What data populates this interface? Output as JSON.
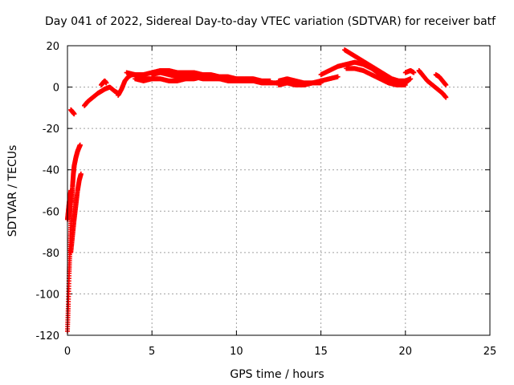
{
  "chart_data": {
    "type": "scatter",
    "title": "Day 041 of 2022, Sidereal Day-to-day VTEC variation (SDTVAR) for receiver batf",
    "xlabel": "GPS time / hours",
    "ylabel": "SDTVAR / TECUs",
    "xlim": [
      0,
      25
    ],
    "ylim": [
      -120,
      20
    ],
    "xticks": [
      0,
      5,
      10,
      15,
      20,
      25
    ],
    "yticks": [
      20,
      0,
      -20,
      -40,
      -60,
      -80,
      -100,
      -120
    ],
    "grid": true,
    "marker": "+",
    "series_color": "#ff0000",
    "tracks": [
      {
        "name": "steep_rise_a",
        "points": [
          [
            0.0,
            -118
          ],
          [
            0.05,
            -105
          ],
          [
            0.1,
            -90
          ],
          [
            0.15,
            -78
          ],
          [
            0.2,
            -66
          ],
          [
            0.25,
            -56
          ],
          [
            0.3,
            -48
          ],
          [
            0.35,
            -42
          ],
          [
            0.4,
            -38
          ],
          [
            0.5,
            -34
          ],
          [
            0.6,
            -31
          ],
          [
            0.7,
            -29
          ],
          [
            0.75,
            -28
          ]
        ]
      },
      {
        "name": "steep_rise_b",
        "points": [
          [
            0.0,
            -64
          ],
          [
            0.05,
            -60
          ],
          [
            0.1,
            -56
          ],
          [
            0.15,
            -53
          ],
          [
            0.2,
            -50
          ]
        ]
      },
      {
        "name": "steep_rise_c",
        "points": [
          [
            0.2,
            -80
          ],
          [
            0.3,
            -72
          ],
          [
            0.4,
            -64
          ],
          [
            0.5,
            -57
          ],
          [
            0.6,
            -50
          ],
          [
            0.7,
            -45
          ],
          [
            0.8,
            -42
          ]
        ]
      },
      {
        "name": "early_arc",
        "points": [
          [
            0.2,
            -11
          ],
          [
            0.3,
            -12
          ],
          [
            0.4,
            -13
          ]
        ]
      },
      {
        "name": "early_mid",
        "points": [
          [
            1.0,
            -9
          ],
          [
            1.2,
            -7
          ],
          [
            1.5,
            -5
          ],
          [
            1.8,
            -3
          ],
          [
            2.0,
            -2
          ],
          [
            2.2,
            -1
          ],
          [
            2.5,
            0
          ],
          [
            2.8,
            -2
          ],
          [
            3.0,
            -3
          ]
        ]
      },
      {
        "name": "bump_2",
        "points": [
          [
            2.0,
            1
          ],
          [
            2.1,
            2
          ],
          [
            2.2,
            3
          ],
          [
            2.3,
            2
          ]
        ]
      },
      {
        "name": "rise_3",
        "points": [
          [
            3.0,
            -4
          ],
          [
            3.2,
            -1
          ],
          [
            3.4,
            3
          ],
          [
            3.6,
            5
          ],
          [
            3.8,
            6
          ],
          [
            4.0,
            6
          ],
          [
            4.3,
            5
          ],
          [
            4.6,
            4
          ],
          [
            5.0,
            4
          ]
        ]
      },
      {
        "name": "main_upper",
        "points": [
          [
            3.5,
            7
          ],
          [
            4.0,
            6
          ],
          [
            4.5,
            6
          ],
          [
            5.0,
            7
          ],
          [
            5.5,
            8
          ],
          [
            6.0,
            8
          ],
          [
            6.5,
            7
          ],
          [
            7.0,
            7
          ],
          [
            7.5,
            7
          ],
          [
            8.0,
            6
          ],
          [
            8.5,
            6
          ],
          [
            9.0,
            5
          ],
          [
            9.5,
            5
          ],
          [
            10.0,
            4
          ],
          [
            10.5,
            4
          ],
          [
            11.0,
            4
          ],
          [
            11.5,
            3
          ],
          [
            12.0,
            3
          ]
        ]
      },
      {
        "name": "main_lower",
        "points": [
          [
            4.0,
            4
          ],
          [
            4.5,
            3
          ],
          [
            5.0,
            4
          ],
          [
            5.5,
            4
          ],
          [
            6.0,
            3
          ],
          [
            6.5,
            3
          ],
          [
            7.0,
            4
          ],
          [
            7.5,
            4
          ],
          [
            8.0,
            5
          ],
          [
            8.5,
            5
          ],
          [
            9.0,
            4
          ],
          [
            9.5,
            3
          ],
          [
            10.0,
            3
          ],
          [
            10.5,
            3
          ],
          [
            11.0,
            3
          ],
          [
            11.5,
            2
          ],
          [
            12.0,
            2
          ],
          [
            12.5,
            2
          ]
        ]
      },
      {
        "name": "main_mid",
        "points": [
          [
            5.0,
            6
          ],
          [
            5.5,
            7
          ],
          [
            6.0,
            6
          ],
          [
            6.5,
            5
          ],
          [
            7.0,
            5
          ],
          [
            7.5,
            5
          ],
          [
            8.0,
            4
          ],
          [
            8.5,
            4
          ],
          [
            9.0,
            4
          ],
          [
            9.5,
            4
          ],
          [
            10.0,
            3
          ]
        ]
      },
      {
        "name": "plateau_13_15",
        "points": [
          [
            12.5,
            3
          ],
          [
            13.0,
            4
          ],
          [
            13.5,
            3
          ],
          [
            14.0,
            2
          ],
          [
            14.5,
            2
          ],
          [
            15.0,
            3
          ],
          [
            15.5,
            4
          ],
          [
            16.0,
            5
          ]
        ]
      },
      {
        "name": "plateau_13_15_b",
        "points": [
          [
            12.5,
            1
          ],
          [
            13.0,
            2
          ],
          [
            13.5,
            1
          ],
          [
            14.0,
            1
          ],
          [
            14.5,
            2
          ],
          [
            15.0,
            2
          ]
        ]
      },
      {
        "name": "hump_upper",
        "points": [
          [
            16.4,
            18
          ],
          [
            16.8,
            16
          ],
          [
            17.2,
            14
          ],
          [
            17.6,
            12
          ],
          [
            18.0,
            10
          ],
          [
            18.4,
            8
          ],
          [
            18.8,
            6
          ],
          [
            19.2,
            4
          ],
          [
            19.6,
            3
          ],
          [
            20.0,
            3
          ],
          [
            20.3,
            4
          ]
        ]
      },
      {
        "name": "hump_lower",
        "points": [
          [
            15.0,
            6
          ],
          [
            15.5,
            8
          ],
          [
            16.0,
            10
          ],
          [
            16.5,
            11
          ],
          [
            17.0,
            12
          ],
          [
            17.5,
            11
          ],
          [
            18.0,
            9
          ],
          [
            18.5,
            6
          ],
          [
            19.0,
            4
          ],
          [
            19.5,
            3
          ],
          [
            20.0,
            2
          ],
          [
            20.3,
            4
          ]
        ]
      },
      {
        "name": "hump_bottom",
        "points": [
          [
            16.5,
            9
          ],
          [
            17.0,
            9
          ],
          [
            17.5,
            8
          ],
          [
            18.0,
            6
          ],
          [
            18.5,
            4
          ],
          [
            19.0,
            2
          ],
          [
            19.5,
            1
          ],
          [
            20.0,
            1
          ]
        ]
      },
      {
        "name": "late_seg_a",
        "points": [
          [
            20.0,
            7
          ],
          [
            20.3,
            8
          ],
          [
            20.5,
            7
          ]
        ]
      },
      {
        "name": "late_seg_b",
        "points": [
          [
            20.8,
            8
          ],
          [
            21.0,
            6
          ],
          [
            21.3,
            3
          ],
          [
            21.6,
            1
          ],
          [
            21.9,
            -1
          ],
          [
            22.2,
            -3
          ],
          [
            22.4,
            -5
          ]
        ]
      },
      {
        "name": "late_seg_c",
        "points": [
          [
            21.8,
            6
          ],
          [
            22.0,
            5
          ],
          [
            22.2,
            3
          ],
          [
            22.4,
            1
          ]
        ]
      }
    ]
  }
}
